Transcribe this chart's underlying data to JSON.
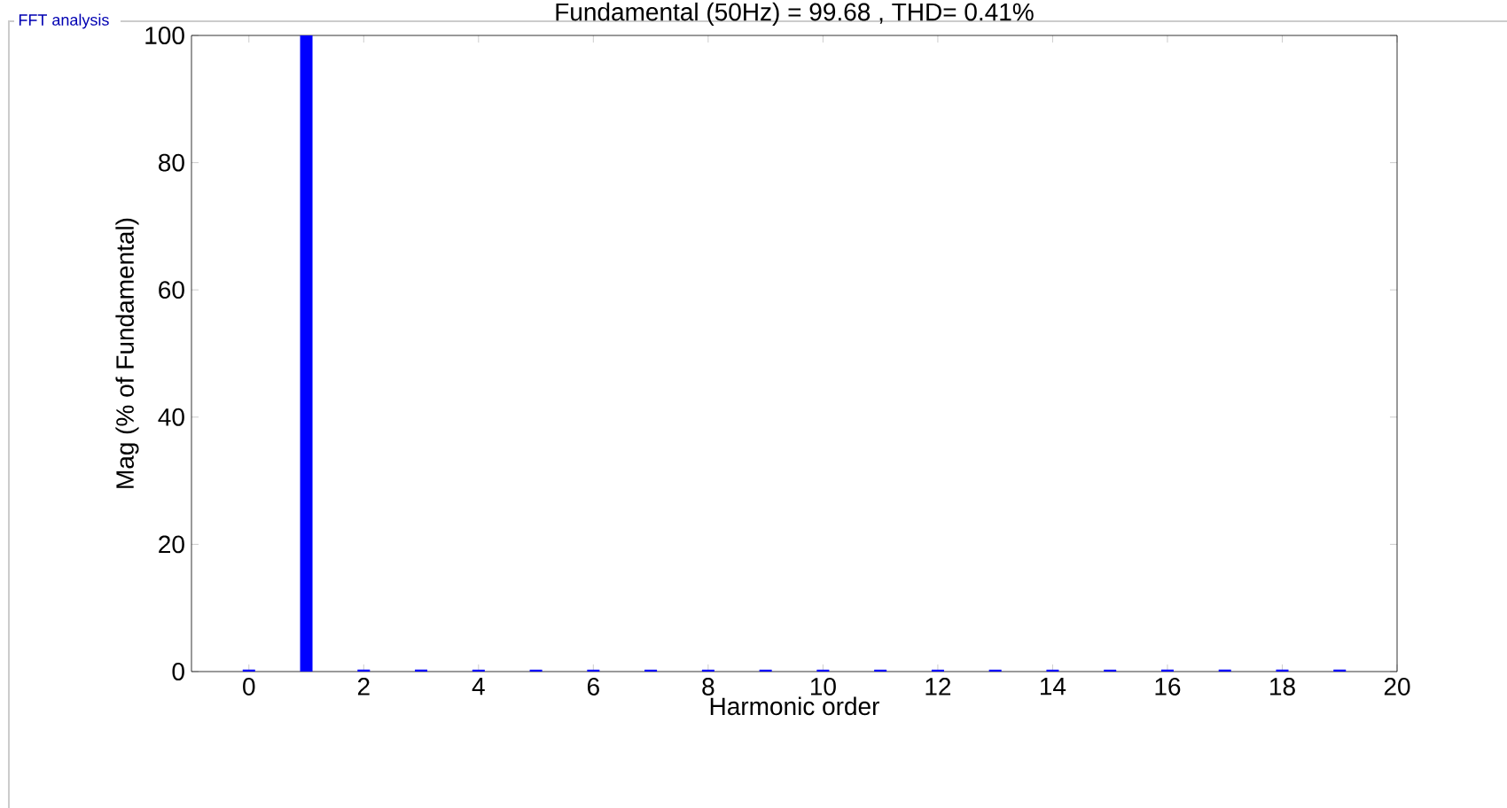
{
  "chart_data": {
    "type": "bar",
    "title": "Fundamental (50Hz) = 99.68 , THD= 0.41%",
    "xlabel": "Harmonic order",
    "ylabel": "Mag (% of Fundamental)",
    "annotations": [
      "FFT analysis"
    ],
    "x": [
      0,
      1,
      2,
      3,
      4,
      5,
      6,
      7,
      8,
      9,
      10,
      11,
      12,
      13,
      14,
      15,
      16,
      17,
      18,
      19
    ],
    "values": [
      0.3,
      100,
      0.3,
      0.3,
      0.3,
      0.3,
      0.3,
      0.3,
      0.3,
      0.3,
      0.3,
      0.3,
      0.3,
      0.3,
      0.3,
      0.3,
      0.3,
      0.3,
      0.3,
      0.3
    ],
    "color": "#0000ff",
    "xlim": [
      -1,
      20
    ],
    "ylim": [
      0,
      100
    ],
    "xticks": [
      0,
      2,
      4,
      6,
      8,
      10,
      12,
      14,
      16,
      18,
      20
    ],
    "yticks": [
      0,
      20,
      40,
      60,
      80,
      100
    ],
    "grid": false
  }
}
